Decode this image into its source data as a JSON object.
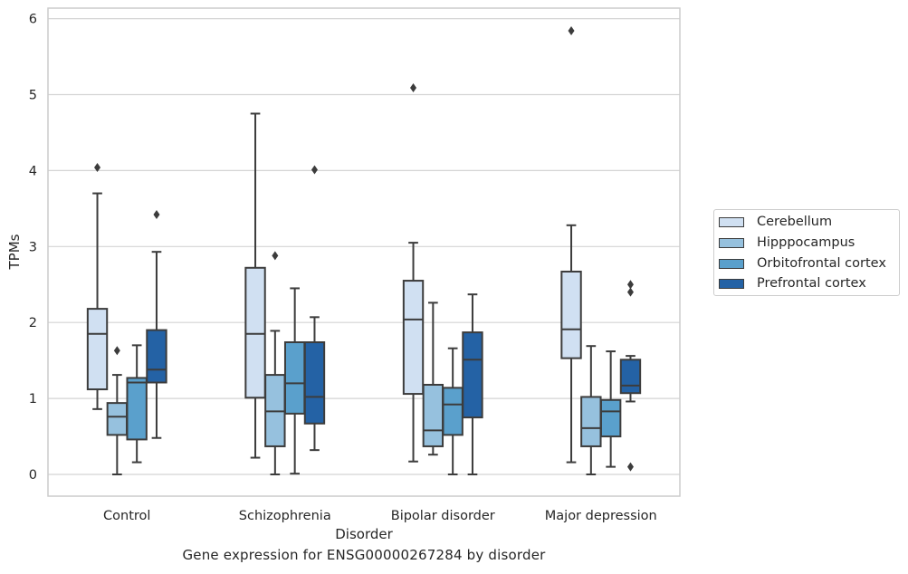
{
  "caption": "Gene expression for ENSG00000267284 by disorder",
  "chart_data": {
    "type": "box",
    "xlabel": "Disorder",
    "ylabel": "TPMs",
    "categories": [
      "Control",
      "Schizophrenia",
      "Bipolar disorder",
      "Major depression"
    ],
    "ylim": [
      -0.3,
      6.13
    ],
    "yticks": [
      "0",
      "1",
      "2",
      "3",
      "4",
      "5",
      "6"
    ],
    "grid": true,
    "legend_position": "right",
    "series": [
      {
        "name": "Cerebellum",
        "color": "#d0e0f2",
        "boxes": [
          {
            "whisker_low": 0.86,
            "q1": 1.12,
            "median": 1.85,
            "q3": 2.18,
            "whisker_high": 3.7,
            "outliers": [
              4.04
            ]
          },
          {
            "whisker_low": 0.22,
            "q1": 1.01,
            "median": 1.85,
            "q3": 2.72,
            "whisker_high": 4.75,
            "outliers": []
          },
          {
            "whisker_low": 0.17,
            "q1": 1.06,
            "median": 2.04,
            "q3": 2.55,
            "whisker_high": 3.05,
            "outliers": [
              5.09
            ]
          },
          {
            "whisker_low": 0.16,
            "q1": 1.53,
            "median": 1.91,
            "q3": 2.67,
            "whisker_high": 3.28,
            "outliers": [
              5.84
            ]
          }
        ]
      },
      {
        "name": "Hipppocampus",
        "color": "#96c1de",
        "boxes": [
          {
            "whisker_low": 0.0,
            "q1": 0.52,
            "median": 0.76,
            "q3": 0.94,
            "whisker_high": 1.31,
            "outliers": [
              1.63
            ]
          },
          {
            "whisker_low": 0.0,
            "q1": 0.37,
            "median": 0.83,
            "q3": 1.31,
            "whisker_high": 1.89,
            "outliers": [
              2.88
            ]
          },
          {
            "whisker_low": 0.26,
            "q1": 0.37,
            "median": 0.58,
            "q3": 1.18,
            "whisker_high": 2.26,
            "outliers": []
          },
          {
            "whisker_low": 0.0,
            "q1": 0.37,
            "median": 0.61,
            "q3": 1.02,
            "whisker_high": 1.69,
            "outliers": []
          }
        ]
      },
      {
        "name": "Orbitofrontal cortex",
        "color": "#5aa0cc",
        "boxes": [
          {
            "whisker_low": 0.16,
            "q1": 0.46,
            "median": 1.21,
            "q3": 1.27,
            "whisker_high": 1.7,
            "outliers": []
          },
          {
            "whisker_low": 0.01,
            "q1": 0.8,
            "median": 1.2,
            "q3": 1.74,
            "whisker_high": 2.45,
            "outliers": []
          },
          {
            "whisker_low": 0.0,
            "q1": 0.52,
            "median": 0.92,
            "q3": 1.14,
            "whisker_high": 1.66,
            "outliers": []
          },
          {
            "whisker_low": 0.1,
            "q1": 0.5,
            "median": 0.83,
            "q3": 0.98,
            "whisker_high": 1.62,
            "outliers": []
          }
        ]
      },
      {
        "name": "Prefrontal cortex",
        "color": "#2462a5",
        "boxes": [
          {
            "whisker_low": 0.48,
            "q1": 1.21,
            "median": 1.38,
            "q3": 1.9,
            "whisker_high": 2.93,
            "outliers": [
              3.42
            ]
          },
          {
            "whisker_low": 0.32,
            "q1": 0.67,
            "median": 1.02,
            "q3": 1.74,
            "whisker_high": 2.07,
            "outliers": [
              4.01
            ]
          },
          {
            "whisker_low": 0.0,
            "q1": 0.75,
            "median": 1.51,
            "q3": 1.87,
            "whisker_high": 2.37,
            "outliers": []
          },
          {
            "whisker_low": 0.96,
            "q1": 1.07,
            "median": 1.17,
            "q3": 1.51,
            "whisker_high": 1.56,
            "outliers": [
              2.5,
              2.4,
              0.1
            ]
          }
        ]
      }
    ]
  }
}
